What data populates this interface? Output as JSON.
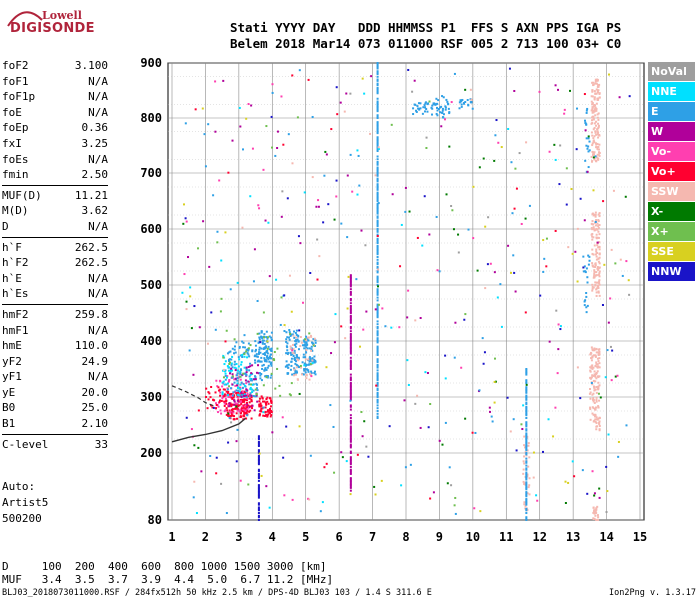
{
  "logo": {
    "line1": "Lowell",
    "line2": "DIGISONDE"
  },
  "header": {
    "line1": "Stati YYYY DAY   DDD HHMMSS P1  FFS S AXN PPS IGA PS",
    "line2": "Belem 2018 Mar14 073 011000 RSF 005 2 713 100 03+ C0"
  },
  "params": [
    {
      "k": "foF2",
      "v": "3.100"
    },
    {
      "k": "foF1",
      "v": "N/A"
    },
    {
      "k": "foF1p",
      "v": "N/A"
    },
    {
      "k": "foE",
      "v": "N/A"
    },
    {
      "k": "foEp",
      "v": "0.36"
    },
    {
      "k": "fxI",
      "v": "3.25"
    },
    {
      "k": "foEs",
      "v": "N/A"
    },
    {
      "k": "fmin",
      "v": "2.50"
    },
    {
      "k": "MUF(D)",
      "v": "11.21"
    },
    {
      "k": "M(D)",
      "v": "3.62"
    },
    {
      "k": "D",
      "v": "N/A"
    },
    {
      "k": "h`F",
      "v": "262.5"
    },
    {
      "k": "h`F2",
      "v": "262.5"
    },
    {
      "k": "h`E",
      "v": "N/A"
    },
    {
      "k": "h`Es",
      "v": "N/A"
    },
    {
      "k": "hmF2",
      "v": "259.8"
    },
    {
      "k": "hmF1",
      "v": "N/A"
    },
    {
      "k": "hmE",
      "v": "110.0"
    },
    {
      "k": "yF2",
      "v": "24.9"
    },
    {
      "k": "yF1",
      "v": "N/A"
    },
    {
      "k": "yE",
      "v": "20.0"
    },
    {
      "k": "B0",
      "v": "25.0"
    },
    {
      "k": "B1",
      "v": "2.10"
    },
    {
      "k": "C-level",
      "v": "33"
    }
  ],
  "auto": {
    "l1": "Auto:",
    "l2": "Artist5",
    "l3": "500200"
  },
  "footer": {
    "line1": "D     100  200  400  600  800 1000 1500 3000 [km]",
    "line2": "MUF   3.4  3.5  3.7  3.9  4.4  5.0  6.7 11.2 [MHz]",
    "filename": "BLJ03_2018073011000.RSF / 284fx512h 50 kHz 2.5 km / DPS-4D BLJ03 103 / 1.4 S 311.6 E",
    "version": "Ion2Png v. 1.3.17"
  },
  "legend": [
    {
      "label": "NoVal",
      "color": "#9e9e9e"
    },
    {
      "label": "NNE",
      "color": "#00e0ff"
    },
    {
      "label": "E",
      "color": "#2ea0e6"
    },
    {
      "label": "W",
      "color": "#b0009a"
    },
    {
      "label": "Vo-",
      "color": "#ff3fb0"
    },
    {
      "label": "Vo+",
      "color": "#ff0030"
    },
    {
      "label": "SSW",
      "color": "#f5b8b0"
    },
    {
      "label": "X-",
      "color": "#007a00"
    },
    {
      "label": "X+",
      "color": "#6fbf4f"
    },
    {
      "label": "SSE",
      "color": "#d8d020"
    },
    {
      "label": "NNW",
      "color": "#1a14c8"
    }
  ],
  "chart_data": {
    "type": "scatter",
    "x_ticks": [
      "1",
      "2",
      "3",
      "4",
      "5",
      "6",
      "7",
      "8",
      "9",
      "10",
      "11",
      "12",
      "13",
      "14",
      "15"
    ],
    "y_ticks": [
      "80",
      "200",
      "300",
      "400",
      "500",
      "600",
      "700",
      "800",
      "900"
    ],
    "x_range": [
      1,
      15
    ],
    "y_range": [
      80,
      900
    ],
    "y_tick_values": [
      80,
      200,
      300,
      400,
      500,
      600,
      700,
      800,
      900
    ],
    "grid": true,
    "clusters": [
      {
        "color": "#ff0030",
        "x": [
          2.6,
          3.4
        ],
        "y": [
          260,
          310
        ],
        "n": 170
      },
      {
        "color": "#ff3fb0",
        "x": [
          2.3,
          3.3
        ],
        "y": [
          270,
          340
        ],
        "n": 70
      },
      {
        "color": "#2ea0e6",
        "x": [
          2.6,
          3.6
        ],
        "y": [
          300,
          400
        ],
        "n": 120
      },
      {
        "color": "#00e0ff",
        "x": [
          2.5,
          3.5
        ],
        "y": [
          300,
          380
        ],
        "n": 60
      },
      {
        "color": "#b0009a",
        "x": [
          2.7,
          3.6
        ],
        "y": [
          280,
          360
        ],
        "n": 40
      },
      {
        "color": "#2ea0e6",
        "x": [
          3.6,
          4.0
        ],
        "y": [
          330,
          420
        ],
        "n": 100
      },
      {
        "color": "#ff0030",
        "x": [
          3.6,
          4.0
        ],
        "y": [
          265,
          300
        ],
        "n": 60
      },
      {
        "color": "#2ea0e6",
        "x": [
          4.4,
          4.8
        ],
        "y": [
          340,
          420
        ],
        "n": 90
      },
      {
        "color": "#2ea0e6",
        "x": [
          4.9,
          5.3
        ],
        "y": [
          340,
          410
        ],
        "n": 80
      },
      {
        "color": "#f5b8b0",
        "x": [
          4.5,
          5.3
        ],
        "y": [
          330,
          410
        ],
        "n": 40
      },
      {
        "color": "#ff0030",
        "x": [
          2.0,
          2.6
        ],
        "y": [
          280,
          320
        ],
        "n": 30
      },
      {
        "color": "#6fbf4f",
        "x": [
          2.5,
          5.3
        ],
        "y": [
          300,
          420
        ],
        "n": 40
      },
      {
        "color": "#2ea0e6",
        "x": [
          8.2,
          8.9
        ],
        "y": [
          805,
          830
        ],
        "n": 35
      },
      {
        "color": "#2ea0e6",
        "x": [
          8.9,
          9.3
        ],
        "y": [
          800,
          840
        ],
        "n": 30
      },
      {
        "color": "#2ea0e6",
        "x": [
          9.6,
          10.0
        ],
        "y": [
          815,
          835
        ],
        "n": 20
      },
      {
        "color": "#f5b8b0",
        "x": [
          13.55,
          13.8
        ],
        "y": [
          720,
          870
        ],
        "n": 150
      },
      {
        "color": "#f5b8b0",
        "x": [
          13.55,
          13.8
        ],
        "y": [
          480,
          630
        ],
        "n": 130
      },
      {
        "color": "#f5b8b0",
        "x": [
          13.5,
          13.8
        ],
        "y": [
          240,
          390
        ],
        "n": 140
      },
      {
        "color": "#f5b8b0",
        "x": [
          13.6,
          13.75
        ],
        "y": [
          80,
          110
        ],
        "n": 30
      },
      {
        "color": "#f5b8b0",
        "x": [
          11.5,
          11.7
        ],
        "y": [
          90,
          230
        ],
        "n": 40
      },
      {
        "color": "#2ea0e6",
        "x": [
          13.3,
          13.5
        ],
        "y": [
          700,
          820
        ],
        "n": 20
      },
      {
        "color": "#2ea0e6",
        "x": [
          13.3,
          13.5
        ],
        "y": [
          450,
          560
        ],
        "n": 20
      }
    ],
    "columns": [
      {
        "color": "#2ea0e6",
        "x": 7.15,
        "y": [
          260,
          900
        ]
      },
      {
        "color": "#2ea0e6",
        "x": 11.6,
        "y": [
          80,
          350
        ]
      },
      {
        "color": "#b0009a",
        "x": 6.35,
        "y": [
          130,
          520
        ]
      },
      {
        "color": "#1a14c8",
        "x": 3.6,
        "y": [
          80,
          230
        ]
      }
    ],
    "scatter": [
      {
        "color": "#b0009a",
        "n": 70
      },
      {
        "color": "#2ea0e6",
        "n": 80
      },
      {
        "color": "#007a00",
        "n": 40
      },
      {
        "color": "#ff3fb0",
        "n": 50
      },
      {
        "color": "#1a14c8",
        "n": 50
      },
      {
        "color": "#d8d020",
        "n": 40
      },
      {
        "color": "#00e0ff",
        "n": 40
      },
      {
        "color": "#6fbf4f",
        "n": 30
      },
      {
        "color": "#ff0030",
        "n": 30
      },
      {
        "color": "#f5b8b0",
        "n": 30
      },
      {
        "color": "#9e9e9e",
        "n": 20
      }
    ],
    "trace": {
      "x": [
        1.0,
        1.5,
        2.0,
        2.5,
        3.0,
        3.2
      ],
      "y": [
        220,
        228,
        233,
        240,
        252,
        262
      ]
    },
    "trace_dashed": {
      "x": [
        1.0,
        1.4,
        1.8,
        2.0,
        2.3
      ],
      "y": [
        320,
        310,
        298,
        290,
        283
      ]
    }
  }
}
